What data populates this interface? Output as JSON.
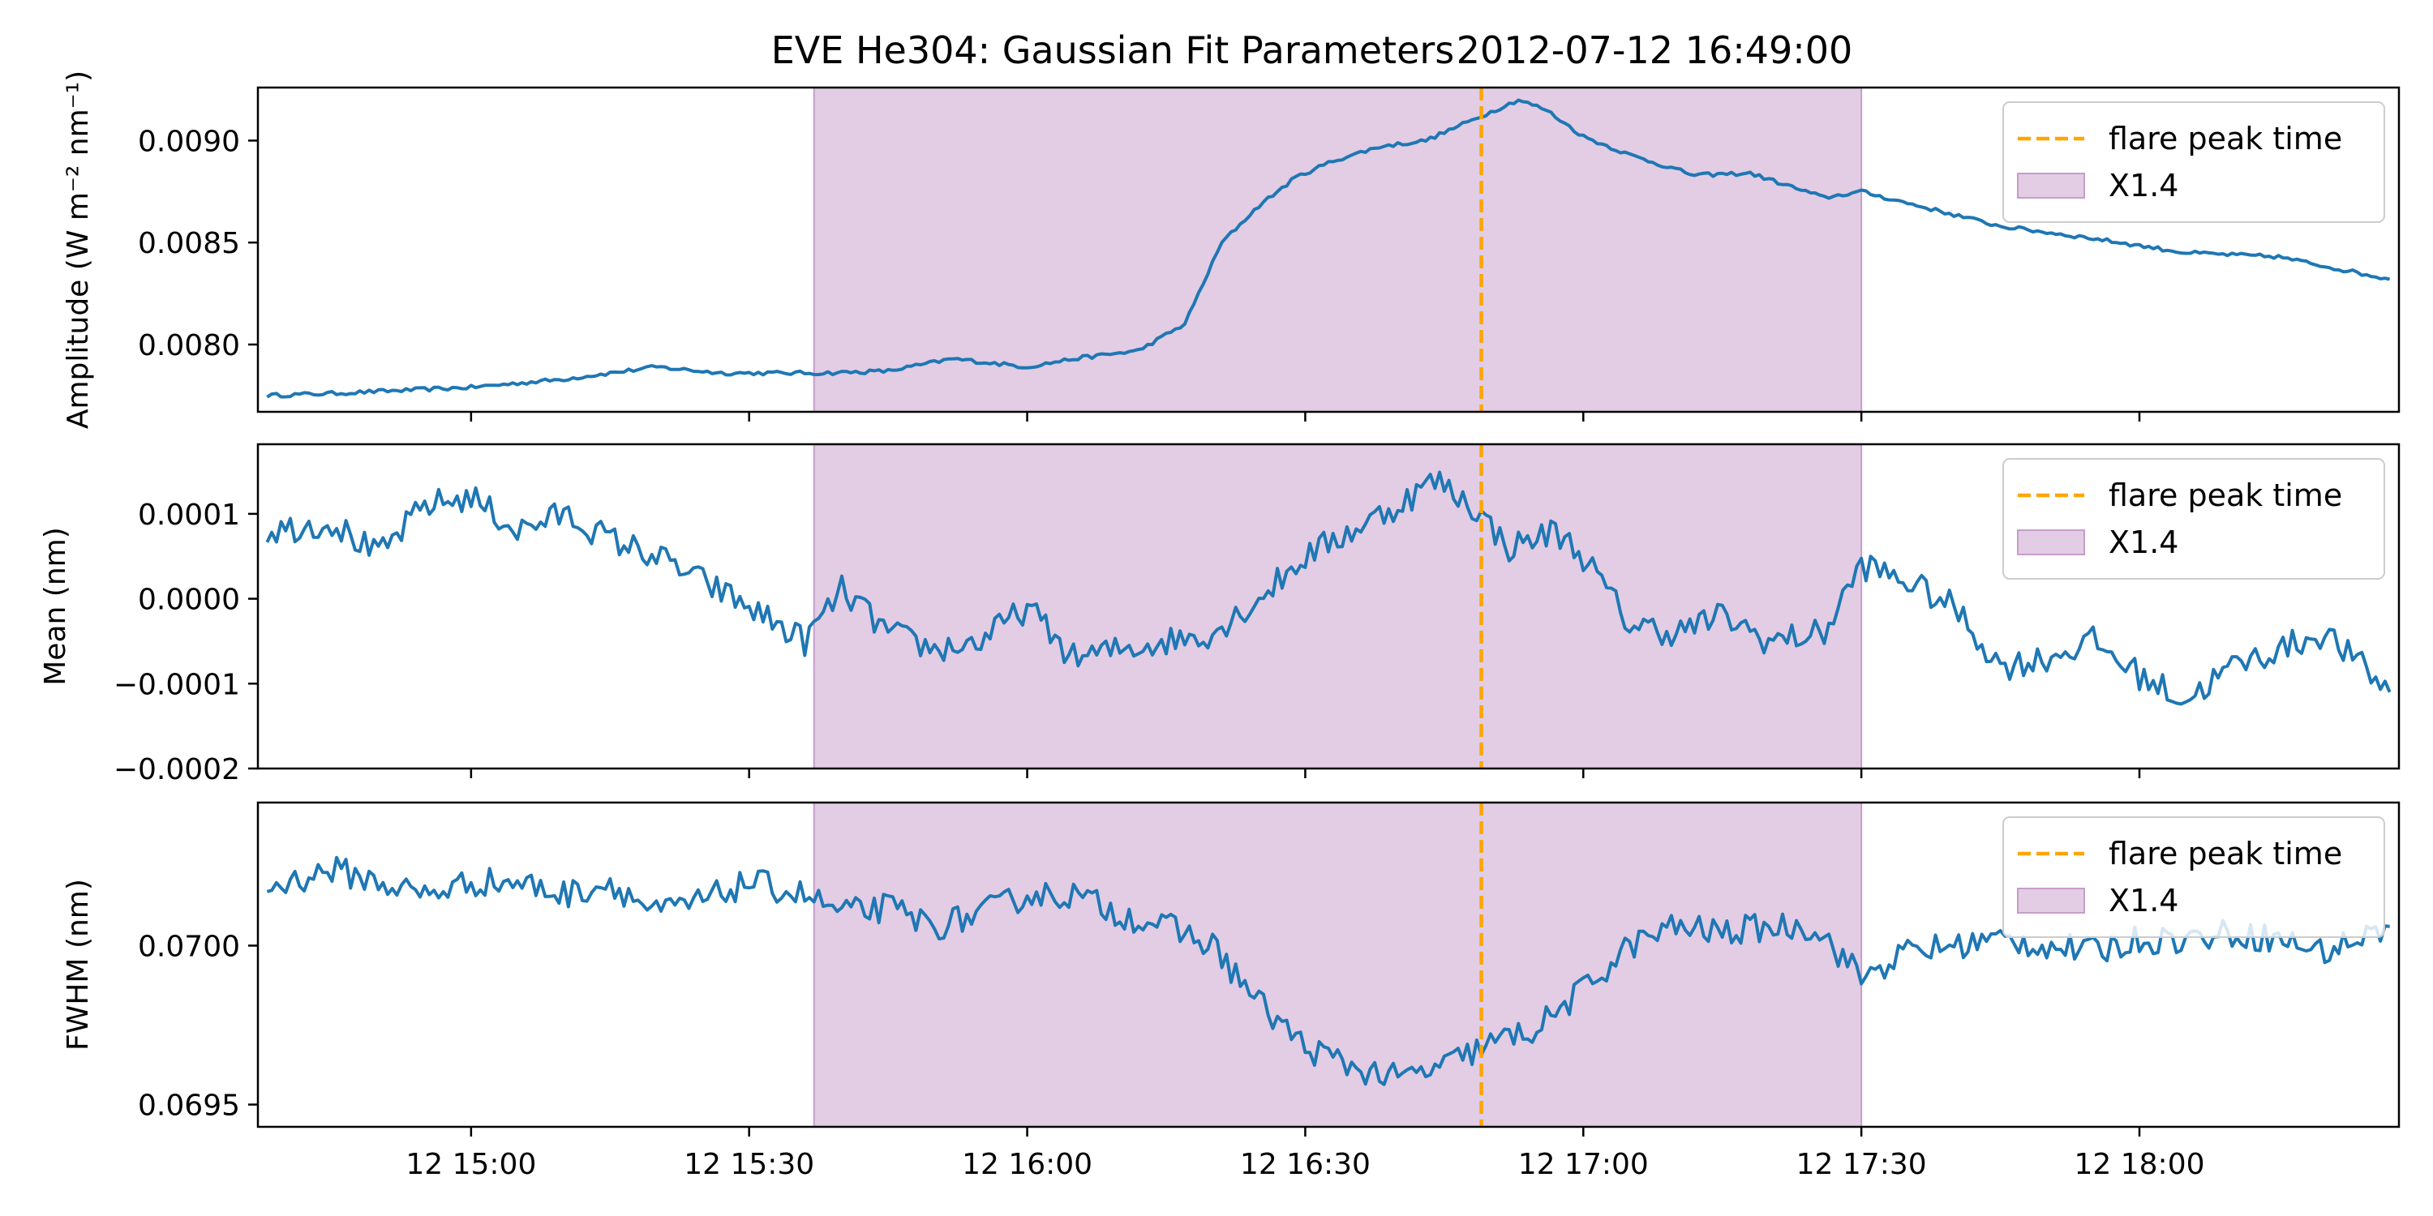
{
  "figure": {
    "title_left": "EVE He304: Gaussian Fit Parameters",
    "title_right": "2012-07-12 16:49:00"
  },
  "chart_data": [
    {
      "type": "line",
      "ylabel": "Amplitude (W m⁻² nm⁻¹)",
      "ylim": [
        0.00767,
        0.00926
      ],
      "yticks": [
        0.008,
        0.0085,
        0.009
      ],
      "ytick_labels": [
        "0.0080",
        "0.0085",
        "0.0090"
      ],
      "xlim": [
        "2012-07-12 14:37",
        "2012-07-12 18:28"
      ],
      "xticks": [
        "2012-07-12 15:00",
        "2012-07-12 15:30",
        "2012-07-12 16:00",
        "2012-07-12 16:30",
        "2012-07-12 17:00",
        "2012-07-12 17:30",
        "2012-07-12 18:00"
      ],
      "flare_peak_time": "2012-07-12 16:49",
      "flare_interval": [
        "2012-07-12 15:37",
        "2012-07-12 17:30"
      ],
      "legend": {
        "position": "top-right",
        "entries": [
          "flare peak time",
          "X1.4"
        ]
      },
      "grid": false,
      "series": [
        {
          "x": [
            "2012-07-12 14:38",
            "2012-07-12 14:45",
            "2012-07-12 14:55",
            "2012-07-12 15:00",
            "2012-07-12 15:10",
            "2012-07-12 15:20",
            "2012-07-12 15:27",
            "2012-07-12 15:33",
            "2012-07-12 15:38",
            "2012-07-12 15:45",
            "2012-07-12 15:52",
            "2012-07-12 16:00",
            "2012-07-12 16:05",
            "2012-07-12 16:12",
            "2012-07-12 16:17",
            "2012-07-12 16:21",
            "2012-07-12 16:25",
            "2012-07-12 16:29",
            "2012-07-12 16:33",
            "2012-07-12 16:38",
            "2012-07-12 16:43",
            "2012-07-12 16:47",
            "2012-07-12 16:50",
            "2012-07-12 16:53",
            "2012-07-12 16:56",
            "2012-07-12 17:00",
            "2012-07-12 17:05",
            "2012-07-12 17:12",
            "2012-07-12 17:18",
            "2012-07-12 17:26",
            "2012-07-12 17:30",
            "2012-07-12 17:37",
            "2012-07-12 17:45",
            "2012-07-12 17:55",
            "2012-07-12 18:05",
            "2012-07-12 18:15",
            "2012-07-12 18:27"
          ],
          "values": [
            0.00775,
            0.00776,
            0.00778,
            0.00779,
            0.00783,
            0.00789,
            0.00786,
            0.00786,
            0.00786,
            0.00787,
            0.00793,
            0.00789,
            0.00793,
            0.00797,
            0.0081,
            0.0085,
            0.00868,
            0.00882,
            0.0089,
            0.00897,
            0.009,
            0.00908,
            0.00914,
            0.0092,
            0.00915,
            0.00902,
            0.00893,
            0.00883,
            0.00884,
            0.00872,
            0.00875,
            0.00867,
            0.00858,
            0.00852,
            0.00845,
            0.00843,
            0.00832
          ]
        }
      ]
    },
    {
      "type": "line",
      "ylabel": "Mean (nm)",
      "ylim": [
        -0.0002,
        0.000182
      ],
      "yticks": [
        -0.0002,
        -0.0001,
        0.0,
        0.0001
      ],
      "ytick_labels": [
        "−0.0002",
        "−0.0001",
        "0.0000",
        "0.0001"
      ],
      "xlim": [
        "2012-07-12 14:37",
        "2012-07-12 18:28"
      ],
      "flare_peak_time": "2012-07-12 16:49",
      "flare_interval": [
        "2012-07-12 15:37",
        "2012-07-12 17:30"
      ],
      "legend": {
        "position": "top-right",
        "entries": [
          "flare peak time",
          "X1.4"
        ]
      },
      "grid": false,
      "series": [
        {
          "x": [
            "2012-07-12 14:38",
            "2012-07-12 14:45",
            "2012-07-12 14:50",
            "2012-07-12 14:55",
            "2012-07-12 15:00",
            "2012-07-12 15:05",
            "2012-07-12 15:10",
            "2012-07-12 15:15",
            "2012-07-12 15:20",
            "2012-07-12 15:25",
            "2012-07-12 15:30",
            "2012-07-12 15:36",
            "2012-07-12 15:40",
            "2012-07-12 15:45",
            "2012-07-12 15:50",
            "2012-07-12 15:55",
            "2012-07-12 16:00",
            "2012-07-12 16:05",
            "2012-07-12 16:10",
            "2012-07-12 16:15",
            "2012-07-12 16:20",
            "2012-07-12 16:25",
            "2012-07-12 16:30",
            "2012-07-12 16:35",
            "2012-07-12 16:40",
            "2012-07-12 16:44",
            "2012-07-12 16:48",
            "2012-07-12 16:52",
            "2012-07-12 16:57",
            "2012-07-12 17:00",
            "2012-07-12 17:05",
            "2012-07-12 17:10",
            "2012-07-12 17:15",
            "2012-07-12 17:20",
            "2012-07-12 17:26",
            "2012-07-12 17:30",
            "2012-07-12 17:35",
            "2012-07-12 17:40",
            "2012-07-12 17:45",
            "2012-07-12 17:50",
            "2012-07-12 17:55",
            "2012-07-12 18:00",
            "2012-07-12 18:05",
            "2012-07-12 18:10",
            "2012-07-12 18:15",
            "2012-07-12 18:20",
            "2012-07-12 18:27"
          ],
          "values": [
            8e-05,
            9e-05,
            5e-05,
            0.00011,
            0.00012,
            8e-05,
            0.0001,
            7e-05,
            5e-05,
            2e-05,
            -1e-05,
            -5e-05,
            1e-05,
            -4e-05,
            -6e-05,
            -5e-05,
            -1e-05,
            -7e-05,
            -6e-05,
            -5e-05,
            -4e-05,
            0.0,
            5e-05,
            8e-05,
            0.00011,
            0.00014,
            0.00011,
            6e-05,
            8e-05,
            5e-05,
            -3e-05,
            -4e-05,
            -2e-05,
            -5e-05,
            -4e-05,
            4e-05,
            2e-05,
            -1e-05,
            -8e-05,
            -7e-05,
            -5e-05,
            -9e-05,
            -0.00012,
            -8e-05,
            -6e-05,
            -4e-05,
            -0.00011
          ]
        }
      ]
    },
    {
      "type": "line",
      "ylabel": "FWHM (nm)",
      "ylim": [
        0.06943,
        0.07045
      ],
      "yticks": [
        0.0695,
        0.07
      ],
      "ytick_labels": [
        "0.0695",
        "0.0700"
      ],
      "xlim": [
        "2012-07-12 14:37",
        "2012-07-12 18:28"
      ],
      "xticks": [
        "2012-07-12 15:00",
        "2012-07-12 15:30",
        "2012-07-12 16:00",
        "2012-07-12 16:30",
        "2012-07-12 17:00",
        "2012-07-12 17:30",
        "2012-07-12 18:00"
      ],
      "xtick_labels": [
        "12 15:00",
        "12 15:30",
        "12 16:00",
        "12 16:30",
        "12 17:00",
        "12 17:30",
        "12 18:00"
      ],
      "flare_peak_time": "2012-07-12 16:49",
      "flare_interval": [
        "2012-07-12 15:37",
        "2012-07-12 17:30"
      ],
      "legend": {
        "position": "top-right",
        "entries": [
          "flare peak time",
          "X1.4"
        ]
      },
      "grid": false,
      "series": [
        {
          "x": [
            "2012-07-12 14:38",
            "2012-07-12 14:45",
            "2012-07-12 14:50",
            "2012-07-12 14:55",
            "2012-07-12 15:00",
            "2012-07-12 15:05",
            "2012-07-12 15:10",
            "2012-07-12 15:15",
            "2012-07-12 15:20",
            "2012-07-12 15:25",
            "2012-07-12 15:30",
            "2012-07-12 15:36",
            "2012-07-12 15:40",
            "2012-07-12 15:45",
            "2012-07-12 15:50",
            "2012-07-12 15:55",
            "2012-07-12 16:00",
            "2012-07-12 16:05",
            "2012-07-12 16:10",
            "2012-07-12 16:15",
            "2012-07-12 16:20",
            "2012-07-12 16:25",
            "2012-07-12 16:30",
            "2012-07-12 16:35",
            "2012-07-12 16:40",
            "2012-07-12 16:45",
            "2012-07-12 16:49",
            "2012-07-12 16:55",
            "2012-07-12 17:00",
            "2012-07-12 17:05",
            "2012-07-12 17:10",
            "2012-07-12 17:15",
            "2012-07-12 17:20",
            "2012-07-12 17:25",
            "2012-07-12 17:30",
            "2012-07-12 17:35",
            "2012-07-12 17:40",
            "2012-07-12 17:45",
            "2012-07-12 17:50",
            "2012-07-12 17:55",
            "2012-07-12 18:00",
            "2012-07-12 18:05",
            "2012-07-12 18:10",
            "2012-07-12 18:15",
            "2012-07-12 18:20",
            "2012-07-12 18:27"
          ],
          "values": [
            0.07018,
            0.07024,
            0.0702,
            0.07016,
            0.0702,
            0.0702,
            0.07016,
            0.0702,
            0.0701,
            0.07014,
            0.0702,
            0.07016,
            0.0701,
            0.07012,
            0.07006,
            0.0701,
            0.07016,
            0.07016,
            0.0701,
            0.07006,
            0.07,
            0.06982,
            0.06968,
            0.06962,
            0.06958,
            0.06962,
            0.06968,
            0.06974,
            0.06986,
            0.07,
            0.07006,
            0.07004,
            0.07006,
            0.07006,
            0.0699,
            0.06998,
            0.07,
            0.07002,
            0.07,
            0.06998,
            0.07002,
            0.07002,
            0.07004,
            0.07002,
            0.06998,
            0.07006
          ]
        }
      ]
    }
  ]
}
